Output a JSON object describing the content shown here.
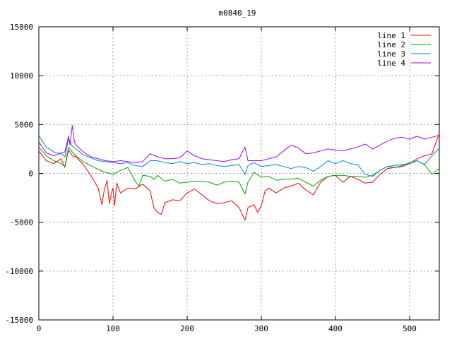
{
  "chart_data": {
    "type": "line",
    "title": "m0840_19",
    "xlim": [
      0,
      540
    ],
    "ylim": [
      -15000,
      15000
    ],
    "xticks": [
      0,
      100,
      200,
      300,
      400,
      500
    ],
    "yticks": [
      -15000,
      -10000,
      -5000,
      0,
      5000,
      10000,
      15000
    ],
    "grid": true,
    "legend_position": "top-right",
    "series": [
      {
        "name": "line 1",
        "color": "#ff0000",
        "points": [
          [
            0,
            2300
          ],
          [
            10,
            1300
          ],
          [
            20,
            1000
          ],
          [
            30,
            1500
          ],
          [
            35,
            600
          ],
          [
            40,
            2400
          ],
          [
            45,
            1800
          ],
          [
            50,
            1700
          ],
          [
            60,
            900
          ],
          [
            70,
            -200
          ],
          [
            80,
            -1500
          ],
          [
            85,
            -3200
          ],
          [
            88,
            -1800
          ],
          [
            92,
            -700
          ],
          [
            95,
            -3100
          ],
          [
            98,
            -2000
          ],
          [
            100,
            -1500
          ],
          [
            102,
            -3300
          ],
          [
            105,
            -1000
          ],
          [
            110,
            -2000
          ],
          [
            120,
            -1500
          ],
          [
            130,
            -1600
          ],
          [
            140,
            -1100
          ],
          [
            150,
            -1800
          ],
          [
            155,
            -3500
          ],
          [
            160,
            -4000
          ],
          [
            165,
            -4200
          ],
          [
            170,
            -3000
          ],
          [
            180,
            -2700
          ],
          [
            190,
            -2800
          ],
          [
            200,
            -2000
          ],
          [
            210,
            -1600
          ],
          [
            220,
            -2200
          ],
          [
            230,
            -2800
          ],
          [
            240,
            -3100
          ],
          [
            250,
            -3000
          ],
          [
            260,
            -2800
          ],
          [
            270,
            -3500
          ],
          [
            278,
            -4800
          ],
          [
            282,
            -3500
          ],
          [
            290,
            -3200
          ],
          [
            295,
            -4000
          ],
          [
            300,
            -3300
          ],
          [
            305,
            -1800
          ],
          [
            310,
            -1500
          ],
          [
            320,
            -2000
          ],
          [
            330,
            -1500
          ],
          [
            340,
            -1300
          ],
          [
            350,
            -1000
          ],
          [
            360,
            -1700
          ],
          [
            370,
            -2200
          ],
          [
            380,
            -900
          ],
          [
            390,
            -300
          ],
          [
            400,
            -200
          ],
          [
            410,
            -900
          ],
          [
            420,
            -300
          ],
          [
            430,
            -600
          ],
          [
            440,
            -1000
          ],
          [
            450,
            -900
          ],
          [
            460,
            -100
          ],
          [
            470,
            500
          ],
          [
            480,
            600
          ],
          [
            490,
            700
          ],
          [
            500,
            1000
          ],
          [
            510,
            1500
          ],
          [
            520,
            1800
          ],
          [
            530,
            2000
          ],
          [
            540,
            4100
          ]
        ]
      },
      {
        "name": "line 2",
        "color": "#00aa00",
        "points": [
          [
            0,
            2700
          ],
          [
            10,
            1800
          ],
          [
            20,
            1300
          ],
          [
            30,
            1000
          ],
          [
            35,
            700
          ],
          [
            40,
            2700
          ],
          [
            45,
            2200
          ],
          [
            50,
            1800
          ],
          [
            60,
            1200
          ],
          [
            70,
            800
          ],
          [
            80,
            400
          ],
          [
            90,
            100
          ],
          [
            100,
            -100
          ],
          [
            110,
            300
          ],
          [
            120,
            600
          ],
          [
            130,
            -800
          ],
          [
            135,
            -1300
          ],
          [
            140,
            -200
          ],
          [
            150,
            -300
          ],
          [
            155,
            -600
          ],
          [
            160,
            -200
          ],
          [
            170,
            -800
          ],
          [
            180,
            -600
          ],
          [
            190,
            -1000
          ],
          [
            200,
            -900
          ],
          [
            210,
            -800
          ],
          [
            220,
            -800
          ],
          [
            230,
            -900
          ],
          [
            240,
            -1200
          ],
          [
            250,
            -900
          ],
          [
            260,
            -800
          ],
          [
            270,
            -900
          ],
          [
            278,
            -2100
          ],
          [
            282,
            -900
          ],
          [
            290,
            100
          ],
          [
            300,
            -400
          ],
          [
            310,
            -300
          ],
          [
            320,
            -700
          ],
          [
            330,
            -600
          ],
          [
            340,
            -600
          ],
          [
            350,
            -500
          ],
          [
            360,
            -900
          ],
          [
            370,
            -1300
          ],
          [
            380,
            -700
          ],
          [
            390,
            -300
          ],
          [
            400,
            -200
          ],
          [
            410,
            -200
          ],
          [
            420,
            -300
          ],
          [
            430,
            -300
          ],
          [
            440,
            -400
          ],
          [
            450,
            -200
          ],
          [
            460,
            300
          ],
          [
            470,
            700
          ],
          [
            480,
            800
          ],
          [
            490,
            900
          ],
          [
            500,
            1000
          ],
          [
            510,
            1300
          ],
          [
            520,
            900
          ],
          [
            530,
            -100
          ],
          [
            540,
            500
          ]
        ]
      },
      {
        "name": "line 3",
        "color": "#0088dd",
        "points": [
          [
            0,
            3900
          ],
          [
            10,
            2700
          ],
          [
            20,
            2200
          ],
          [
            30,
            2000
          ],
          [
            35,
            1700
          ],
          [
            40,
            3500
          ],
          [
            45,
            2800
          ],
          [
            50,
            2500
          ],
          [
            60,
            1900
          ],
          [
            70,
            1600
          ],
          [
            80,
            1300
          ],
          [
            90,
            1200
          ],
          [
            100,
            1100
          ],
          [
            110,
            1000
          ],
          [
            120,
            1100
          ],
          [
            130,
            800
          ],
          [
            140,
            700
          ],
          [
            150,
            1300
          ],
          [
            160,
            1300
          ],
          [
            170,
            1100
          ],
          [
            180,
            1000
          ],
          [
            190,
            1200
          ],
          [
            200,
            1000
          ],
          [
            210,
            1100
          ],
          [
            220,
            900
          ],
          [
            230,
            1000
          ],
          [
            240,
            800
          ],
          [
            250,
            700
          ],
          [
            260,
            800
          ],
          [
            270,
            900
          ],
          [
            278,
            -100
          ],
          [
            282,
            800
          ],
          [
            290,
            1100
          ],
          [
            300,
            700
          ],
          [
            310,
            800
          ],
          [
            320,
            900
          ],
          [
            330,
            700
          ],
          [
            340,
            500
          ],
          [
            350,
            700
          ],
          [
            360,
            600
          ],
          [
            370,
            200
          ],
          [
            380,
            700
          ],
          [
            390,
            1300
          ],
          [
            400,
            1000
          ],
          [
            410,
            1300
          ],
          [
            420,
            1000
          ],
          [
            430,
            900
          ],
          [
            440,
            -100
          ],
          [
            450,
            -300
          ],
          [
            460,
            300
          ],
          [
            470,
            700
          ],
          [
            480,
            600
          ],
          [
            490,
            800
          ],
          [
            500,
            1100
          ],
          [
            510,
            1300
          ],
          [
            520,
            900
          ],
          [
            530,
            1800
          ],
          [
            540,
            2600
          ]
        ]
      },
      {
        "name": "line 4",
        "color": "#aa00ee",
        "points": [
          [
            0,
            3200
          ],
          [
            10,
            2100
          ],
          [
            20,
            1800
          ],
          [
            30,
            2100
          ],
          [
            35,
            2200
          ],
          [
            40,
            3800
          ],
          [
            42,
            2900
          ],
          [
            45,
            4900
          ],
          [
            48,
            3200
          ],
          [
            50,
            2900
          ],
          [
            60,
            2200
          ],
          [
            70,
            1700
          ],
          [
            80,
            1500
          ],
          [
            90,
            1300
          ],
          [
            100,
            1200
          ],
          [
            110,
            1300
          ],
          [
            120,
            1200
          ],
          [
            130,
            1100
          ],
          [
            140,
            1200
          ],
          [
            150,
            2000
          ],
          [
            160,
            1700
          ],
          [
            170,
            1500
          ],
          [
            180,
            1500
          ],
          [
            190,
            1600
          ],
          [
            200,
            2300
          ],
          [
            210,
            1800
          ],
          [
            220,
            1500
          ],
          [
            230,
            1400
          ],
          [
            240,
            1300
          ],
          [
            250,
            1200
          ],
          [
            260,
            1400
          ],
          [
            270,
            1500
          ],
          [
            278,
            2700
          ],
          [
            282,
            1300
          ],
          [
            290,
            1300
          ],
          [
            300,
            1300
          ],
          [
            310,
            1500
          ],
          [
            320,
            1700
          ],
          [
            330,
            2300
          ],
          [
            340,
            2900
          ],
          [
            350,
            2600
          ],
          [
            360,
            2000
          ],
          [
            370,
            2100
          ],
          [
            380,
            2300
          ],
          [
            390,
            2500
          ],
          [
            400,
            2400
          ],
          [
            410,
            2300
          ],
          [
            420,
            2500
          ],
          [
            430,
            2700
          ],
          [
            440,
            3000
          ],
          [
            450,
            2500
          ],
          [
            460,
            2900
          ],
          [
            470,
            3300
          ],
          [
            480,
            3600
          ],
          [
            490,
            3700
          ],
          [
            500,
            3500
          ],
          [
            510,
            3800
          ],
          [
            520,
            3500
          ],
          [
            530,
            3700
          ],
          [
            540,
            3900
          ]
        ]
      }
    ]
  }
}
